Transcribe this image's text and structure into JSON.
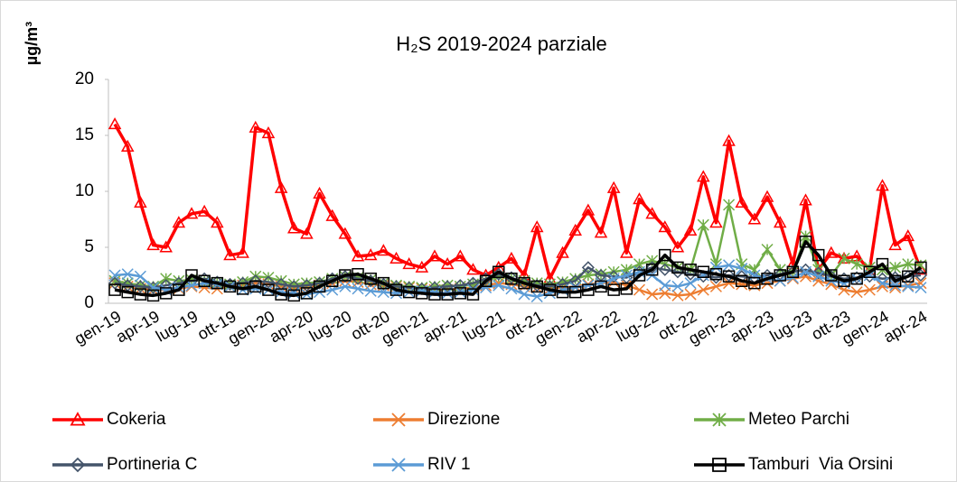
{
  "chart_data": {
    "type": "line",
    "title": "H₂S 2019-2024 parziale",
    "y_label": "µg/m³",
    "categories": [
      "gen-19",
      null,
      null,
      "apr-19",
      null,
      null,
      "lug-19",
      null,
      null,
      "ott-19",
      null,
      null,
      "gen-20",
      null,
      null,
      "apr-20",
      null,
      null,
      "lug-20",
      null,
      null,
      "ott-20",
      null,
      null,
      "gen-21",
      null,
      null,
      "apr-21",
      null,
      null,
      "lug-21",
      null,
      null,
      "ott-21",
      null,
      null,
      "gen-22",
      null,
      null,
      "apr-22",
      null,
      null,
      "lug-22",
      null,
      null,
      "ott-22",
      null,
      null,
      "gen-23",
      null,
      null,
      "apr-23",
      null,
      null,
      "lug-23",
      null,
      null,
      "ott-23",
      null,
      null,
      "gen-24",
      null,
      null,
      "apr-24"
    ],
    "ylim": [
      0,
      20
    ],
    "yticks": [
      0,
      5,
      10,
      15,
      20
    ],
    "grid": false,
    "series": [
      {
        "name": "Cokeria",
        "color": "#ff0000",
        "marker": "triangle",
        "values": [
          16,
          14,
          9,
          5.2,
          5,
          7.2,
          8,
          8.2,
          7.2,
          4.3,
          4.5,
          15.7,
          15.2,
          10.3,
          6.7,
          6.2,
          9.8,
          7.8,
          6.2,
          4.2,
          4.3,
          4.7,
          4,
          3.5,
          3.2,
          4.2,
          3.5,
          4.2,
          3,
          2.5,
          3.2,
          4,
          2.5,
          6.8,
          2.2,
          4.5,
          6.5,
          8.3,
          6.3,
          10.3,
          4.5,
          9.3,
          8,
          6.8,
          5,
          6.5,
          11.3,
          7.2,
          14.5,
          9,
          7.5,
          9.5,
          7.2,
          3.5,
          9.2,
          3,
          4.5,
          4,
          4.2,
          3,
          10.5,
          5.2,
          6,
          3
        ]
      },
      {
        "name": "Direzione",
        "color": "#ed7d31",
        "marker": "x",
        "values": [
          1.8,
          1.5,
          1.3,
          1.2,
          1.2,
          1.3,
          1.5,
          1.4,
          1.3,
          1.5,
          1.6,
          1.8,
          1.7,
          1.5,
          1.3,
          1.4,
          1.6,
          1.8,
          2,
          1.9,
          1.7,
          1.6,
          1.5,
          1.4,
          1.3,
          1.2,
          1.2,
          1.3,
          1.4,
          1.6,
          1.8,
          1.7,
          1.5,
          1.4,
          1.3,
          1.4,
          1.5,
          1.7,
          1.8,
          1.9,
          1.6,
          1.2,
          0.8,
          0.9,
          0.7,
          0.8,
          1.2,
          1.5,
          1.8,
          1.7,
          1.6,
          1.8,
          2,
          2.2,
          2.4,
          2,
          1.7,
          1.2,
          1,
          1.2,
          1.5,
          1.4,
          1.6,
          1.8
        ]
      },
      {
        "name": "Meteo Parchi",
        "color": "#70ad47",
        "marker": "asterisk",
        "values": [
          2,
          1.8,
          1.6,
          1.5,
          2.2,
          2,
          2.1,
          2,
          1.8,
          1.7,
          1.9,
          2.4,
          2.3,
          2,
          1.7,
          1.8,
          1.9,
          2.2,
          2.4,
          2.3,
          2.1,
          1.8,
          1.6,
          1.5,
          1.4,
          1.5,
          1.6,
          1.5,
          1.7,
          2,
          2.4,
          2.2,
          2,
          1.8,
          1.7,
          1.9,
          2.2,
          2.5,
          2.6,
          2.8,
          3,
          3.5,
          3.8,
          3.5,
          3.2,
          3,
          7,
          3.5,
          8.8,
          3.5,
          3,
          4.8,
          3,
          2.8,
          6,
          3,
          2.5,
          4,
          3.5,
          3.2,
          3,
          3.2,
          3.5,
          3.4
        ]
      },
      {
        "name": "Portineria C",
        "color": "#44546a",
        "marker": "diamond",
        "values": [
          1.8,
          1.6,
          1.5,
          1.4,
          1.6,
          1.8,
          2,
          2.2,
          1.9,
          1.7,
          1.8,
          2,
          1.9,
          1.7,
          1.5,
          1.6,
          1.8,
          2.2,
          2.4,
          2.2,
          2,
          1.7,
          1.5,
          1.4,
          1.3,
          1.4,
          1.5,
          1.6,
          1.8,
          2.2,
          2.6,
          2.3,
          1.8,
          1.6,
          1.5,
          1.7,
          2,
          3.2,
          2.5,
          2.4,
          2.3,
          2.8,
          3.2,
          3,
          2.8,
          2.6,
          2.4,
          2.3,
          2.5,
          2.4,
          2.3,
          2.5,
          2.6,
          2.8,
          3,
          2.7,
          2.4,
          2.2,
          2.3,
          2.4,
          2.2,
          2.3,
          2.4,
          2.5
        ]
      },
      {
        "name": "RIV 1",
        "color": "#5b9bd5",
        "marker": "x",
        "values": [
          2.5,
          2.6,
          2.4,
          1.4,
          1.2,
          1.4,
          1.6,
          1.8,
          1.7,
          1.5,
          1.2,
          1.3,
          1.2,
          1,
          0.9,
          0.8,
          1,
          1.2,
          1.5,
          1.3,
          1.1,
          1,
          0.9,
          1,
          1.1,
          1,
          0.9,
          1,
          1.2,
          1.4,
          1.6,
          1.3,
          0.8,
          0.6,
          0.9,
          1.2,
          1.4,
          1.6,
          1.8,
          2.2,
          2.5,
          2.8,
          2.5,
          1.6,
          1.5,
          1.8,
          2.5,
          3.2,
          3.4,
          3.1,
          2.5,
          2.2,
          2,
          2.3,
          2.8,
          2.4,
          2,
          1.8,
          2.2,
          2.5,
          1.8,
          1.6,
          1.5,
          1.4
        ]
      },
      {
        "name": "Tamburi  Via Orsini",
        "color": "#000000",
        "marker": "square",
        "values": [
          1.2,
          1,
          0.8,
          0.7,
          0.9,
          1.2,
          2.5,
          2,
          1.8,
          1.5,
          1.3,
          1.5,
          1.2,
          0.8,
          0.7,
          0.9,
          1.5,
          2,
          2.5,
          2.6,
          2.2,
          1.8,
          1.2,
          1,
          0.9,
          0.8,
          0.8,
          0.9,
          0.8,
          2,
          2.8,
          2.2,
          1.8,
          1.5,
          1.2,
          1,
          1,
          1.2,
          1.5,
          1.2,
          1.3,
          2.5,
          3,
          4.3,
          3.2,
          3,
          2.8,
          2.6,
          2.4,
          2,
          1.8,
          2.2,
          2.5,
          2.8,
          5.5,
          4.3,
          2.5,
          2,
          2.2,
          2.8,
          3.5,
          2,
          2.4,
          3.2
        ]
      }
    ]
  }
}
